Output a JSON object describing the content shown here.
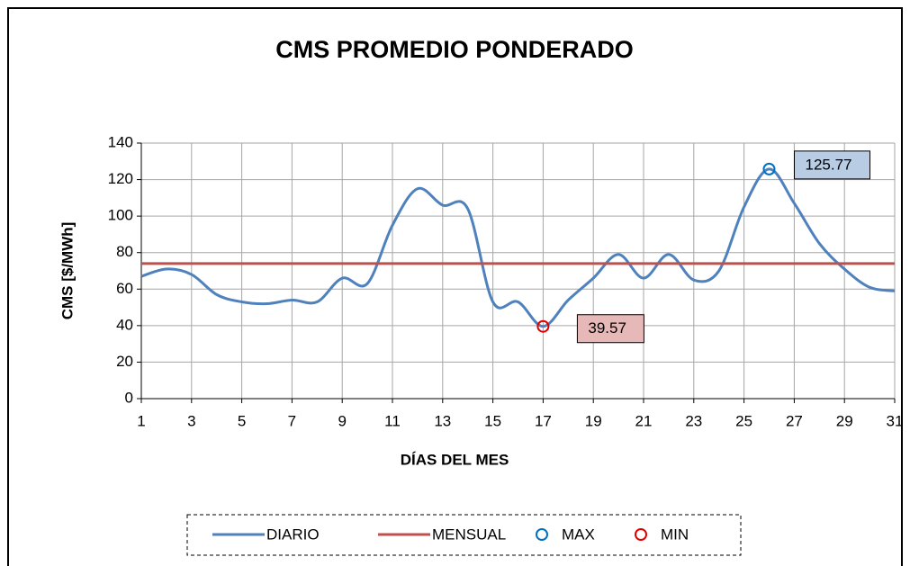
{
  "chart_data": {
    "type": "line",
    "title": "CMS PROMEDIO PONDERADO",
    "xlabel": "DÍAS DEL MES",
    "ylabel": "CMS [$/MWh]",
    "x": [
      1,
      2,
      3,
      4,
      5,
      6,
      7,
      8,
      9,
      10,
      11,
      12,
      13,
      14,
      15,
      16,
      17,
      18,
      19,
      20,
      21,
      22,
      23,
      24,
      25,
      26,
      27,
      28,
      29,
      30,
      31
    ],
    "series": [
      {
        "name": "DIARIO",
        "color": "#4f81bd",
        "values": [
          67,
          71,
          68,
          57,
          53,
          52,
          54,
          53,
          66,
          63,
          95,
          115,
          106,
          104,
          53,
          53,
          39.57,
          54,
          66,
          79,
          66,
          79,
          65,
          70,
          105,
          125.77,
          107,
          85,
          71,
          61,
          59
        ]
      },
      {
        "name": "MENSUAL",
        "color": "#c0504d",
        "values": [
          74,
          74,
          74,
          74,
          74,
          74,
          74,
          74,
          74,
          74,
          74,
          74,
          74,
          74,
          74,
          74,
          74,
          74,
          74,
          74,
          74,
          74,
          74,
          74,
          74,
          74,
          74,
          74,
          74,
          74,
          74
        ]
      },
      {
        "name": "MAX",
        "color": "#0070c0",
        "values": [
          null,
          null,
          null,
          null,
          null,
          null,
          null,
          null,
          null,
          null,
          null,
          null,
          null,
          null,
          null,
          null,
          null,
          null,
          null,
          null,
          null,
          null,
          null,
          null,
          null,
          125.77,
          null,
          null,
          null,
          null,
          null
        ],
        "value_labels": [
          null,
          null,
          null,
          null,
          null,
          null,
          null,
          null,
          null,
          null,
          null,
          null,
          null,
          null,
          null,
          null,
          null,
          null,
          null,
          null,
          null,
          null,
          null,
          null,
          null,
          "125.77",
          null,
          null,
          null,
          null,
          null
        ],
        "label_color": "#b8cce4"
      },
      {
        "name": "MIN",
        "color": "#e00000",
        "values": [
          null,
          null,
          null,
          null,
          null,
          null,
          null,
          null,
          null,
          null,
          null,
          null,
          null,
          null,
          null,
          null,
          39.57,
          null,
          null,
          null,
          null,
          null,
          null,
          null,
          null,
          null,
          null,
          null,
          null,
          null,
          null
        ],
        "value_labels": [
          null,
          null,
          null,
          null,
          null,
          null,
          null,
          null,
          null,
          null,
          null,
          null,
          null,
          null,
          null,
          null,
          "39.57",
          null,
          null,
          null,
          null,
          null,
          null,
          null,
          null,
          null,
          null,
          null,
          null,
          null,
          null
        ],
        "label_color": "#e6b9b8"
      }
    ],
    "xlim": [
      1,
      31
    ],
    "xticks": [
      1,
      3,
      5,
      7,
      9,
      11,
      13,
      15,
      17,
      19,
      21,
      23,
      25,
      27,
      29,
      31
    ],
    "ylim": [
      0,
      140
    ],
    "yticks": [
      0,
      20,
      40,
      60,
      80,
      100,
      120,
      140
    ],
    "grid": true,
    "legend": "bottom"
  }
}
